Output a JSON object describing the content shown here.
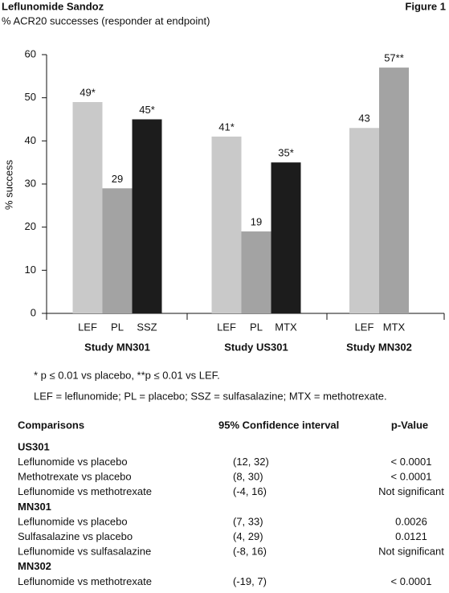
{
  "header": {
    "title": "Leflunomide Sandoz",
    "figure": "Figure 1"
  },
  "chart_data": {
    "type": "bar",
    "subtitle": "% ACR20 successes (responder at endpoint)",
    "y_label": "% success",
    "ylim": [
      0,
      60
    ],
    "yticks": [
      0,
      10,
      20,
      30,
      40,
      50,
      60
    ],
    "groups": [
      {
        "name": "Study MN301",
        "categories": [
          "LEF",
          "PL",
          "SSZ"
        ],
        "values": [
          49,
          29,
          45
        ],
        "value_labels": [
          "49*",
          "29",
          "45*"
        ],
        "colors": [
          "#c9c9c9",
          "#a3a3a3",
          "#1c1c1c"
        ]
      },
      {
        "name": "Study US301",
        "categories": [
          "LEF",
          "PL",
          "MTX"
        ],
        "values": [
          41,
          19,
          35
        ],
        "value_labels": [
          "41*",
          "19",
          "35*"
        ],
        "colors": [
          "#c9c9c9",
          "#a3a3a3",
          "#1c1c1c"
        ]
      },
      {
        "name": "Study MN302",
        "categories": [
          "LEF",
          "MTX"
        ],
        "values": [
          43,
          57
        ],
        "value_labels": [
          "43",
          "57**"
        ],
        "colors": [
          "#c9c9c9",
          "#a3a3a3"
        ]
      }
    ]
  },
  "footnotes": [
    "* p ≤ 0.01 vs placebo, **p ≤ 0.01 vs LEF.",
    "LEF = leflunomide; PL = placebo; SSZ = sulfasalazine; MTX = methotrexate."
  ],
  "table": {
    "columns": [
      "Comparisons",
      "95% Confidence interval",
      "p-Value"
    ],
    "sections": [
      {
        "title": "US301",
        "rows": [
          [
            "Leflunomide vs placebo",
            "(12, 32)",
            "< 0.0001"
          ],
          [
            "Methotrexate vs placebo",
            "(8, 30)",
            "< 0.0001"
          ],
          [
            "Leflunomide vs methotrexate",
            "(-4, 16)",
            "Not significant"
          ]
        ]
      },
      {
        "title": "MN301",
        "rows": [
          [
            "Leflunomide vs placebo",
            "(7, 33)",
            "0.0026"
          ],
          [
            "Sulfasalazine vs placebo",
            "(4, 29)",
            "0.0121"
          ],
          [
            "Leflunomide vs sulfasalazine",
            "(-8, 16)",
            "Not significant"
          ]
        ]
      },
      {
        "title": "MN302",
        "rows": [
          [
            "Leflunomide vs methotrexate",
            "(-19, 7)",
            "< 0.0001"
          ]
        ]
      }
    ]
  }
}
